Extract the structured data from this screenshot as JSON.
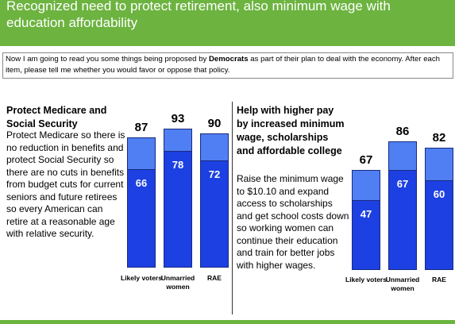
{
  "header": {
    "title": "Recognized need to protect retirement, also minimum wage with education affordability"
  },
  "note": {
    "before": "Now I am going to read you some things being proposed by",
    "bold": "Democrats",
    "after": "as part of their plan to deal with the economy. After each item, please tell me whether you would favor or oppose that policy."
  },
  "chart_data": [
    {
      "type": "bar",
      "title": "Protect Medicare and Social Security",
      "subtitle": "Protect Medicare so there is no reduction in benefits and protect Social Security so there are no cuts in benefits from budget cuts for current seniors and future retirees so every American can retire at a reasonable age with relative security.",
      "categories": [
        "Likely voters",
        "Unmarried women",
        "RAE"
      ],
      "series": [
        {
          "color": "#4f7ff2",
          "values": [
            87,
            93,
            90
          ]
        },
        {
          "color": "#1c40e2",
          "values": [
            66,
            78,
            72
          ]
        }
      ]
    },
    {
      "type": "bar",
      "title": "Help with higher pay by increased minimum wage, scholarships and affordable college",
      "subtitle": "Raise the minimum wage to $10.10 and expand access to scholarships and get school costs down so working women can continue their education and train for better jobs with higher wages.",
      "categories": [
        "Likely voters",
        "Unmarried women",
        "RAE"
      ],
      "series": [
        {
          "color": "#4f7ff2",
          "values": [
            67,
            86,
            82
          ]
        },
        {
          "color": "#1c40e2",
          "values": [
            47,
            67,
            60
          ]
        }
      ]
    }
  ]
}
